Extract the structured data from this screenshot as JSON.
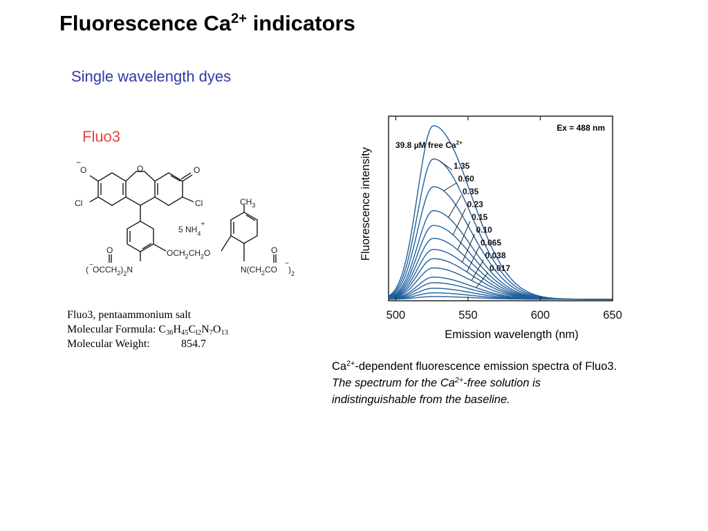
{
  "slide": {
    "title_text": "Fluorescence Ca",
    "title_sup": "2+",
    "title_end": " indicators",
    "subtitle": "Single wavelength dyes",
    "dye_name": "Fluo3"
  },
  "structure": {
    "o_minus": "O",
    "neg_sign": "−",
    "ring_o": "O",
    "keto_o": "O",
    "cl": "Cl",
    "ch3": "CH",
    "ch3_sub": "3",
    "nh4": "5 NH",
    "nh4_sub": "4",
    "nh4_sup": "+",
    "ether_left": "OCH",
    "ether_sub": "2",
    "ether_mid": "CH",
    "ether_right": "O",
    "left_acid": "OCCH",
    "left_n": "N",
    "right_acid": "N(CH",
    "right_co": "CO",
    "sub_2": "2",
    "paren_open": "(",
    "paren_close": ")",
    "carbonyl_o": "O"
  },
  "info": {
    "name": "Fluo3, pentaammonium salt",
    "formula_label": "Molecular Formula: ",
    "formula_parts": [
      "C",
      "36",
      "H",
      "45",
      "C",
      "l2",
      "N",
      "7",
      "O",
      "13"
    ],
    "weight_label": "Molecular Weight:",
    "weight_value": "854.7"
  },
  "caption": {
    "line1_a": "Ca",
    "line1_sup": "2+",
    "line1_b": "-dependent fluorescence emission spectra of Fluo3.",
    "line2_a": "The spectrum for the Ca",
    "line2_sup": "2+",
    "line2_b": "-free solution is",
    "line3": "indistinguishable from the baseline."
  },
  "chart_data": {
    "type": "line",
    "xlabel": "Emission wavelength (nm)",
    "ylabel": "Fluorescence intensity",
    "xlim": [
      495,
      650
    ],
    "ylim": [
      0,
      1.0
    ],
    "x_ticks": [
      500,
      550,
      600,
      650
    ],
    "y_ticks_shown": false,
    "grid": false,
    "annotation": "Ex = 488 nm",
    "peak_wavelength": 526,
    "line_color": "#1f5f9e",
    "series": [
      {
        "label": "39.8 µM free Ca",
        "label_sup": "2+",
        "peak": 0.94
      },
      {
        "label": "1.35",
        "peak": 0.76
      },
      {
        "label": "0.60",
        "peak": 0.61
      },
      {
        "label": "0.35",
        "peak": 0.48
      },
      {
        "label": "0.23",
        "peak": 0.4
      },
      {
        "label": "0.15",
        "peak": 0.33
      },
      {
        "label": "0.10",
        "peak": 0.27
      },
      {
        "label": "0.065",
        "peak": 0.22
      },
      {
        "label": "0.038",
        "peak": 0.17
      },
      {
        "label": "0.017",
        "peak": 0.12
      },
      {
        "label": "",
        "peak": 0.09
      },
      {
        "label": "",
        "peak": 0.06
      },
      {
        "label": "",
        "peak": 0.035
      },
      {
        "label": "",
        "peak": 0.015
      }
    ]
  }
}
